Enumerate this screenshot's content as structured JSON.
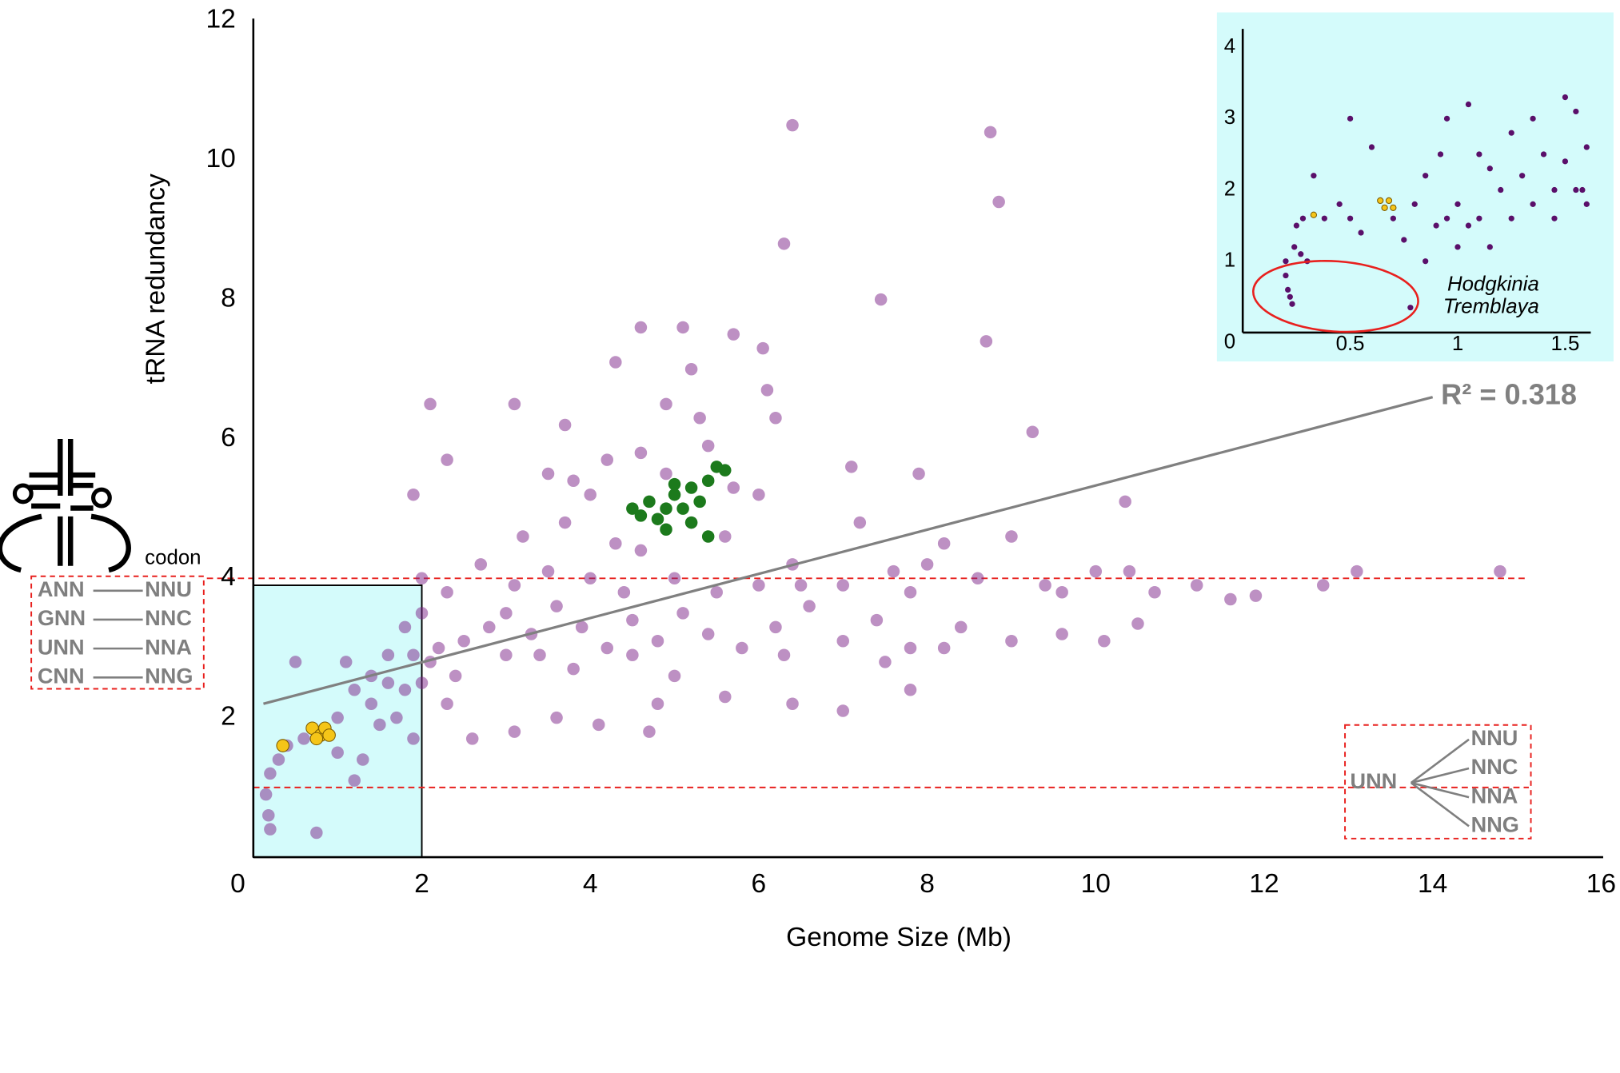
{
  "chart_data": [
    {
      "type": "scatter",
      "xlabel": "Genome Size (Mb)",
      "ylabel": "tRNA redundancy",
      "xlim": [
        0,
        16
      ],
      "ylim": [
        0,
        12
      ],
      "xticks": [
        0,
        2,
        4,
        6,
        8,
        10,
        12,
        14,
        16
      ],
      "yticks": [
        2,
        4,
        6,
        8,
        10,
        12
      ],
      "series": [
        {
          "color": "#7b2188",
          "x": [
            6.4,
            8.75,
            8.85,
            6.3,
            7.45,
            8.7,
            4.6,
            5.1,
            5.7,
            6.05,
            4.3,
            5.2,
            6.2,
            2.1,
            3.1,
            9.25,
            3.7,
            4.9,
            5.3,
            6.1,
            7.1,
            7.9,
            10.35,
            2.3,
            1.9,
            3.5,
            3.8,
            4.2,
            4.6,
            4.9,
            5.4,
            5.7,
            6.0,
            4.0,
            3.2,
            3.7,
            4.3,
            4.6,
            5.2,
            5.6,
            6.4,
            7.2,
            8.2,
            9.0,
            7.6,
            8.6,
            9.4,
            10.0,
            10.4,
            11.2,
            11.9,
            12.7,
            13.1,
            14.8,
            10.5,
            10.1,
            9.6,
            8.2,
            7.8,
            7.0,
            7.8,
            6.4,
            5.6,
            4.8,
            4.7,
            4.1,
            3.6,
            3.1,
            2.6,
            2.3,
            2.0,
            2.2,
            2.5,
            2.8,
            3.0,
            3.3,
            3.6,
            3.9,
            4.2,
            4.5,
            4.8,
            5.1,
            5.4,
            5.8,
            6.2,
            6.6,
            7.0,
            7.4,
            7.8,
            8.4,
            9.0,
            2.0,
            2.3,
            2.7,
            3.1,
            3.5,
            4.0,
            4.4,
            5.0,
            5.5,
            6.0,
            6.5,
            7.0,
            2.0,
            2.1,
            1.9,
            1.8,
            1.6,
            1.4,
            1.2,
            1.0,
            0.8,
            0.6,
            0.4,
            0.3,
            0.2,
            0.15,
            0.18,
            0.2,
            0.75,
            1.0,
            1.2,
            1.5,
            1.7,
            1.9,
            0.5,
            1.1,
            1.4,
            1.6,
            1.3,
            1.8,
            2.4,
            3.0,
            3.4,
            3.8,
            4.5,
            5.0,
            6.3,
            7.5,
            8.0,
            9.6,
            10.7,
            11.6
          ],
          "values": [
            10.5,
            10.4,
            9.4,
            8.8,
            8.0,
            7.4,
            7.6,
            7.6,
            7.5,
            7.3,
            7.1,
            7.0,
            6.3,
            6.5,
            6.5,
            6.1,
            6.2,
            6.5,
            6.3,
            6.7,
            5.6,
            5.5,
            5.1,
            5.7,
            5.2,
            5.5,
            5.4,
            5.7,
            5.8,
            5.5,
            5.9,
            5.3,
            5.2,
            5.2,
            4.6,
            4.8,
            4.5,
            4.4,
            4.8,
            4.6,
            4.2,
            4.8,
            4.5,
            4.6,
            4.1,
            4.0,
            3.9,
            4.1,
            4.1,
            3.9,
            3.75,
            3.9,
            4.1,
            4.1,
            3.35,
            3.1,
            3.2,
            3.0,
            3.0,
            2.1,
            2.4,
            2.2,
            2.3,
            2.2,
            1.8,
            1.9,
            2.0,
            1.8,
            1.7,
            2.2,
            2.5,
            3.0,
            3.1,
            3.3,
            3.5,
            3.2,
            3.6,
            3.3,
            3.0,
            3.4,
            3.1,
            3.5,
            3.2,
            3.0,
            3.3,
            3.6,
            3.1,
            3.4,
            3.8,
            3.3,
            3.1,
            4.0,
            3.8,
            4.2,
            3.9,
            4.1,
            4.0,
            3.8,
            4.0,
            3.8,
            3.9,
            3.9,
            3.9,
            3.5,
            2.8,
            2.9,
            3.3,
            2.9,
            2.6,
            2.4,
            2.0,
            1.8,
            1.7,
            1.6,
            1.4,
            1.2,
            0.9,
            0.6,
            0.4,
            0.35,
            1.5,
            1.1,
            1.9,
            2.0,
            1.7,
            2.8,
            2.8,
            2.2,
            2.5,
            1.4,
            2.4,
            2.6,
            2.9,
            2.9,
            2.7,
            2.9,
            2.6,
            2.9,
            2.8,
            4.2,
            3.8,
            3.8,
            3.7
          ]
        },
        {
          "color": "#1c7a1c",
          "x": [
            4.5,
            4.6,
            4.7,
            4.8,
            4.9,
            5.0,
            5.1,
            5.2,
            5.3,
            5.4,
            5.5,
            4.9,
            5.2,
            5.4,
            5.0,
            5.6
          ],
          "values": [
            5.0,
            4.9,
            5.1,
            4.85,
            5.0,
            5.2,
            5.0,
            5.3,
            5.1,
            5.4,
            5.6,
            4.7,
            4.8,
            4.6,
            5.35,
            5.55
          ]
        },
        {
          "color": "#f5c518",
          "x": [
            0.35,
            0.7,
            0.8,
            0.85,
            0.9,
            0.75
          ],
          "values": [
            1.6,
            1.85,
            1.75,
            1.85,
            1.75,
            1.7
          ]
        }
      ],
      "trendline": {
        "x": [
          0.12,
          14.0
        ],
        "y": [
          2.2,
          6.6
        ],
        "label": "R² = 0.318"
      },
      "reference_lines": [
        4,
        1
      ],
      "highlight_box": {
        "x": [
          0,
          2
        ],
        "y": [
          0,
          3.9
        ]
      },
      "codon_label": "codon",
      "wobble_pairs": [
        [
          "ANN",
          "NNU"
        ],
        [
          "GNN",
          "NNC"
        ],
        [
          "UNN",
          "NNA"
        ],
        [
          "CNN",
          "NNG"
        ]
      ],
      "superwobble": {
        "anticodon": "UNN",
        "codons": [
          "NNU",
          "NNC",
          "NNA",
          "NNG"
        ]
      }
    },
    {
      "type": "scatter",
      "xlim": [
        0,
        1.6
      ],
      "ylim": [
        0,
        4.2
      ],
      "xticks": [
        0.5,
        1,
        1.5
      ],
      "yticks": [
        0,
        1,
        2,
        3,
        4
      ],
      "series": [
        {
          "color": "#5a0f6a",
          "x": [
            0.2,
            0.21,
            0.22,
            0.23,
            0.2,
            0.24,
            0.25,
            0.27,
            0.3,
            0.28,
            0.33,
            0.38,
            0.45,
            0.5,
            0.5,
            0.55,
            0.6,
            0.7,
            0.75,
            0.78,
            0.8,
            0.85,
            0.85,
            0.9,
            0.92,
            0.95,
            0.95,
            1.0,
            1.0,
            1.05,
            1.05,
            1.1,
            1.1,
            1.15,
            1.15,
            1.2,
            1.25,
            1.25,
            1.3,
            1.35,
            1.35,
            1.4,
            1.45,
            1.45,
            1.5,
            1.5,
            1.55,
            1.55,
            1.6,
            1.6,
            1.58
          ],
          "values": [
            0.8,
            0.6,
            0.5,
            0.4,
            1.0,
            1.2,
            1.5,
            1.1,
            1.0,
            1.6,
            2.2,
            1.6,
            1.8,
            1.6,
            3.0,
            1.4,
            2.6,
            1.6,
            1.3,
            0.35,
            1.8,
            2.2,
            1.0,
            1.5,
            2.5,
            3.0,
            1.6,
            1.8,
            1.2,
            3.2,
            1.5,
            2.5,
            1.6,
            2.3,
            1.2,
            2.0,
            1.6,
            2.8,
            2.2,
            1.8,
            3.0,
            2.5,
            2.0,
            1.6,
            3.3,
            2.4,
            2.0,
            3.1,
            2.6,
            1.8,
            2.0
          ]
        },
        {
          "color": "#f5c518",
          "x": [
            0.33,
            0.64,
            0.66,
            0.68,
            0.7
          ],
          "values": [
            1.65,
            1.85,
            1.75,
            1.85,
            1.75
          ]
        }
      ],
      "annotations": [
        "Hodgkinia",
        "Tremblaya"
      ]
    }
  ]
}
